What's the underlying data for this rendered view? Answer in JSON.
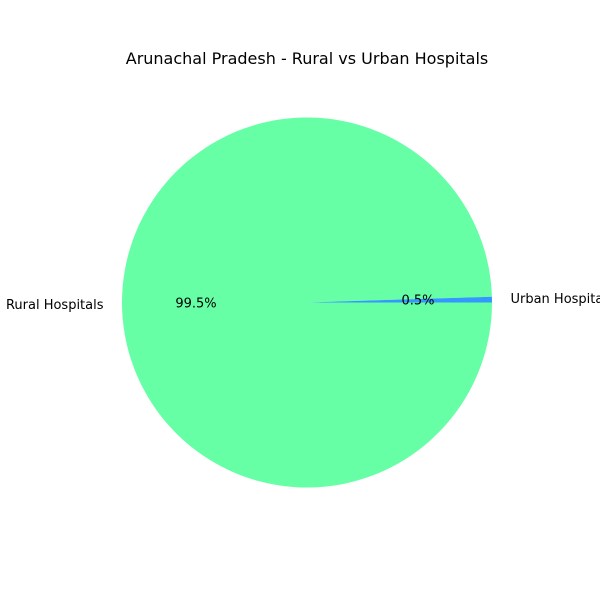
{
  "chart_data": {
    "type": "pie",
    "title": "Arunachal Pradesh - Rural vs Urban Hospitals",
    "slices": [
      {
        "label": "Rural Hospitals",
        "value": 99.5,
        "pct_label": "99.5%",
        "color": "#66ffa6"
      },
      {
        "label": "Urban Hospitals",
        "value": 0.5,
        "pct_label": "0.5%",
        "color": "#3399ff"
      }
    ]
  }
}
